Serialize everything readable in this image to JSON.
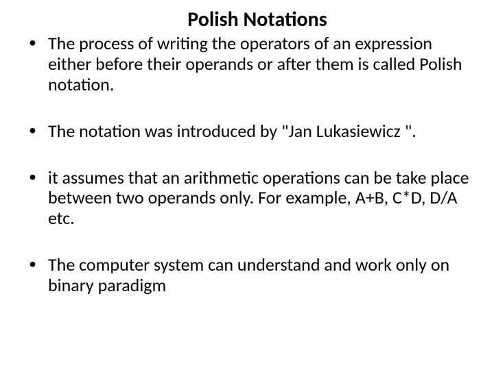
{
  "slide": {
    "title": "Polish Notations",
    "bullets": [
      "The process of writing the operators of an expression either before their operands or after them is called Polish notation.",
      "The notation was introduced by \"Jan Lukasiewicz \".",
      "it assumes that an arithmetic  operations can be take place between two operands only. For example, A+B, C*D, D/A etc.",
      "The computer system can understand and work only on binary paradigm"
    ],
    "colors": {
      "background": "#ffffff",
      "text": "#000000"
    },
    "typography": {
      "title_fontsize": 30,
      "title_weight": 700,
      "body_fontsize": 26,
      "body_weight": 400,
      "font_family": "Calibri"
    }
  }
}
